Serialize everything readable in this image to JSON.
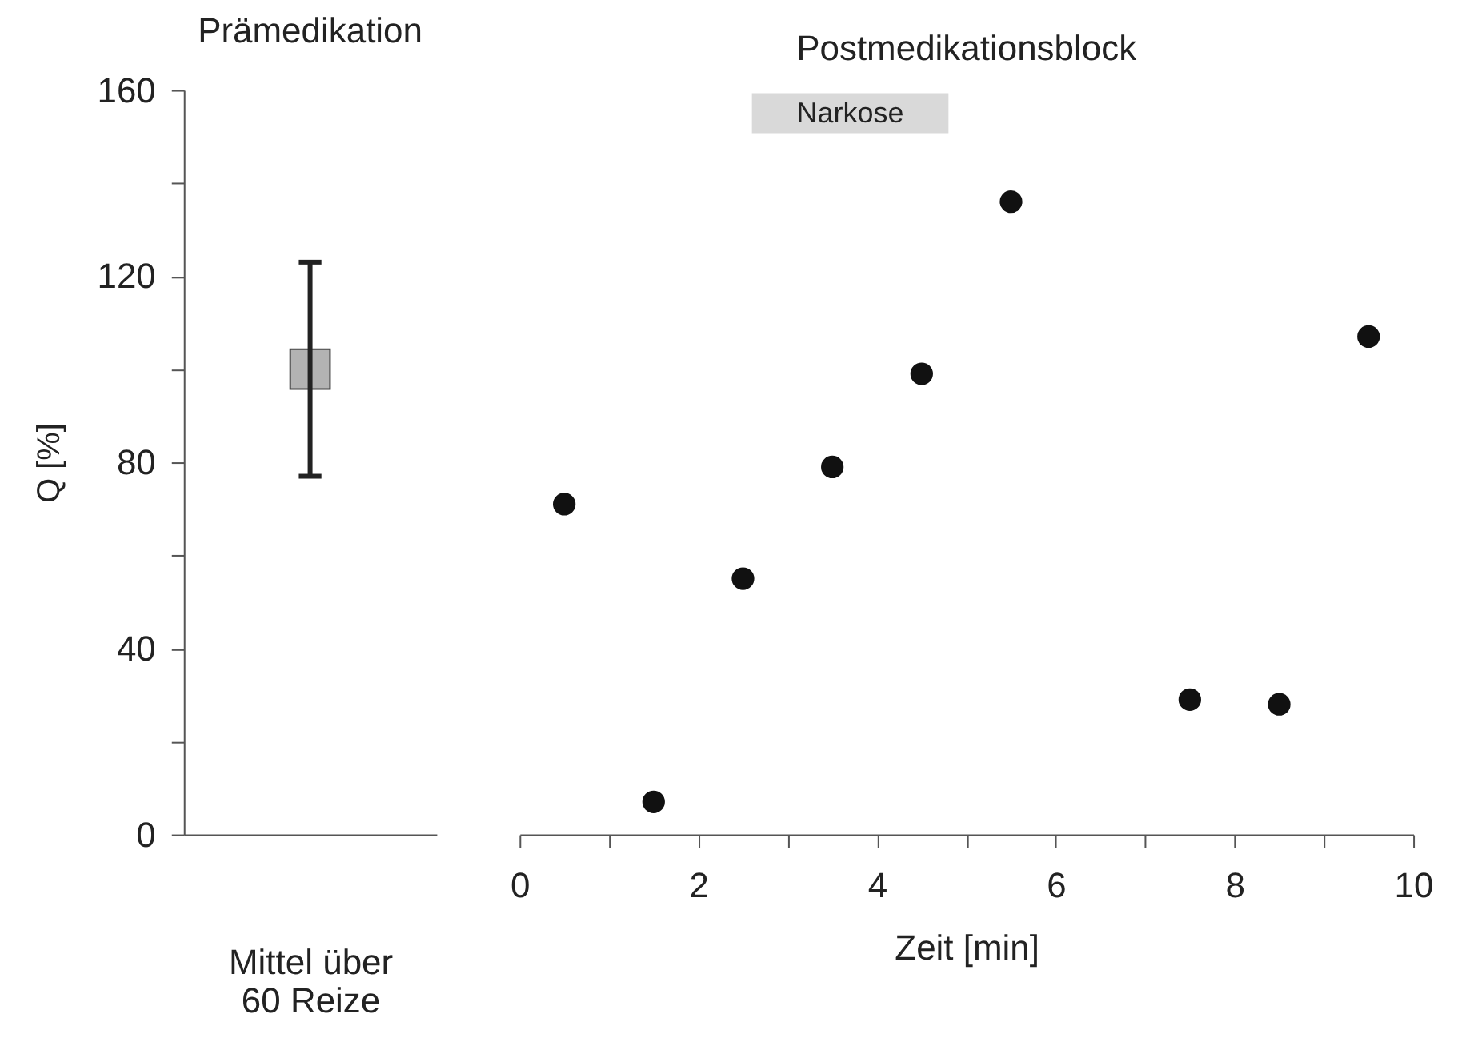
{
  "chart_data": [
    {
      "type": "scatter",
      "title": "Prämedikation",
      "xlabel": "Mittel über\n60 Reize",
      "ylabel": "Q [%]",
      "categories": [
        null
      ],
      "marker": "square",
      "series": [
        {
          "color": "#b3b3b3",
          "values": [
            100
          ],
          "errors": [
            [
              77,
              123
            ]
          ]
        }
      ],
      "ylim": [
        0,
        160
      ],
      "yticks": [
        0,
        {
          "value": 20,
          "label": null
        },
        40,
        {
          "value": 60,
          "label": null
        },
        80,
        {
          "value": 100,
          "label": null
        },
        120,
        {
          "value": 140,
          "label": null
        },
        160
      ],
      "tick_labels": "y",
      "grid": false
    },
    {
      "type": "scatter",
      "title": "Postmedikationsblock",
      "xlabel": "Zeit [min]",
      "marker": "circle",
      "x": [
        0.5,
        1.5,
        2.5,
        3.5,
        4.5,
        5.5,
        7.5,
        8.5,
        9.5
      ],
      "series": [
        {
          "color": "#111111",
          "values": [
            71,
            7,
            55,
            79,
            99,
            136,
            29,
            28,
            107
          ]
        }
      ],
      "xlim": [
        0,
        10
      ],
      "xticks": [
        0,
        {
          "value": 1,
          "label": null
        },
        2,
        {
          "value": 3,
          "label": null
        },
        4,
        {
          "value": 5,
          "label": null
        },
        6,
        {
          "value": 7,
          "label": null
        },
        8,
        {
          "value": 9,
          "label": null
        },
        10
      ],
      "ylim": [
        0,
        160
      ],
      "tick_labels": "x",
      "grid": false,
      "bands": [
        {
          "axis": "x",
          "from": 2.6,
          "to": 4.8,
          "label": "Narkose",
          "color": "#d9d9d9"
        }
      ]
    }
  ]
}
